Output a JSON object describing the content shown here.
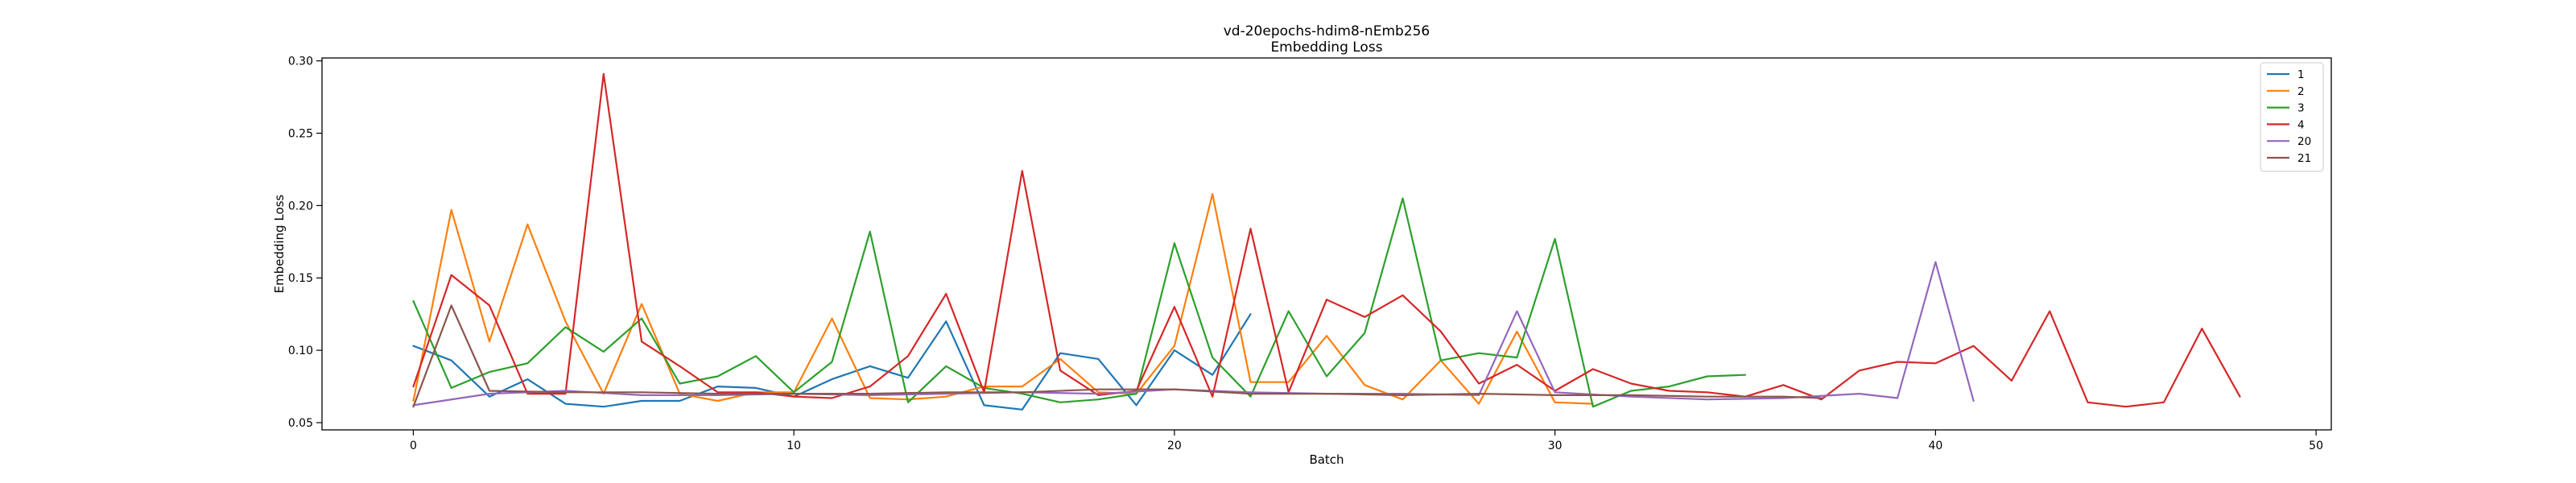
{
  "chart_data": {
    "type": "line",
    "title": "vd-20epochs-hdim8-nEmb256",
    "subtitle": "Embedding Loss",
    "xlabel": "Batch",
    "ylabel": "Embedding Loss",
    "xlim": [
      -2.4,
      50.4
    ],
    "ylim": [
      0.045,
      0.302
    ],
    "xticks": [
      0,
      10,
      20,
      30,
      40,
      50
    ],
    "yticks": [
      0.05,
      0.1,
      0.15,
      0.2,
      0.25,
      0.3
    ],
    "xtick_labels": [
      "0",
      "10",
      "20",
      "30",
      "40",
      "50"
    ],
    "ytick_labels": [
      "0.05",
      "0.10",
      "0.15",
      "0.20",
      "0.25",
      "0.30"
    ],
    "grid": false,
    "legend_position": "top-right",
    "series": [
      {
        "name": "1",
        "color": "#1f77b4",
        "x": [
          0,
          1,
          2,
          3,
          4,
          5,
          6,
          7,
          8,
          9,
          10,
          11,
          12,
          13,
          14,
          15,
          16,
          17,
          18,
          19,
          20,
          21,
          22
        ],
        "y": [
          0.103,
          0.093,
          0.068,
          0.08,
          0.063,
          0.061,
          0.065,
          0.065,
          0.075,
          0.074,
          0.068,
          0.08,
          0.089,
          0.081,
          0.12,
          0.062,
          0.059,
          0.098,
          0.094,
          0.062,
          0.1,
          0.083,
          0.125
        ]
      },
      {
        "name": "2",
        "color": "#ff7f0e",
        "x": [
          0,
          1,
          2,
          3,
          4,
          5,
          6,
          7,
          8,
          9,
          10,
          11,
          12,
          13,
          14,
          15,
          16,
          17,
          18,
          19,
          20,
          21,
          22,
          23,
          24,
          25,
          26,
          27,
          28,
          29,
          30,
          31
        ],
        "y": [
          0.065,
          0.197,
          0.106,
          0.187,
          0.12,
          0.07,
          0.132,
          0.07,
          0.065,
          0.071,
          0.071,
          0.122,
          0.067,
          0.066,
          0.068,
          0.075,
          0.075,
          0.094,
          0.071,
          0.07,
          0.103,
          0.208,
          0.078,
          0.078,
          0.11,
          0.076,
          0.066,
          0.093,
          0.063,
          0.113,
          0.064,
          0.063
        ]
      },
      {
        "name": "3",
        "color": "#2ca02c",
        "x": [
          0,
          1,
          2,
          3,
          4,
          5,
          6,
          7,
          8,
          9,
          10,
          11,
          12,
          13,
          14,
          15,
          16,
          17,
          18,
          19,
          20,
          21,
          22,
          23,
          24,
          25,
          26,
          27,
          28,
          29,
          30,
          31,
          32,
          33,
          34,
          35
        ],
        "y": [
          0.134,
          0.074,
          0.085,
          0.091,
          0.116,
          0.099,
          0.122,
          0.077,
          0.082,
          0.096,
          0.071,
          0.092,
          0.182,
          0.064,
          0.089,
          0.074,
          0.07,
          0.064,
          0.066,
          0.07,
          0.174,
          0.095,
          0.068,
          0.127,
          0.082,
          0.112,
          0.205,
          0.093,
          0.098,
          0.095,
          0.177,
          0.061,
          0.072,
          0.075,
          0.082,
          0.083
        ]
      },
      {
        "name": "4",
        "color": "#d62728",
        "x": [
          0,
          1,
          2,
          3,
          4,
          5,
          6,
          7,
          8,
          9,
          10,
          11,
          12,
          13,
          14,
          15,
          16,
          17,
          18,
          19,
          20,
          21,
          22,
          23,
          24,
          25,
          26,
          27,
          28,
          29,
          30,
          31,
          32,
          33,
          34,
          35,
          36,
          37,
          38,
          39,
          40,
          41,
          42,
          43,
          44,
          45,
          46,
          47,
          48
        ],
        "y": [
          0.075,
          0.152,
          0.131,
          0.07,
          0.07,
          0.291,
          0.106,
          0.089,
          0.071,
          0.071,
          0.068,
          0.067,
          0.075,
          0.096,
          0.139,
          0.071,
          0.224,
          0.086,
          0.069,
          0.072,
          0.13,
          0.068,
          0.184,
          0.071,
          0.135,
          0.123,
          0.138,
          0.113,
          0.077,
          0.09,
          0.072,
          0.087,
          0.077,
          0.072,
          0.071,
          0.068,
          0.076,
          0.066,
          0.086,
          0.092,
          0.091,
          0.103,
          0.079,
          0.127,
          0.064,
          0.061,
          0.064,
          0.115,
          0.068
        ]
      },
      {
        "name": "20",
        "color": "#9467bd",
        "x": [
          0,
          2,
          4,
          6,
          8,
          10,
          12,
          14,
          16,
          18,
          20,
          22,
          24,
          26,
          28,
          29,
          30,
          32,
          34,
          36,
          38,
          39,
          40,
          41
        ],
        "y": [
          0.062,
          0.07,
          0.072,
          0.069,
          0.069,
          0.07,
          0.069,
          0.07,
          0.071,
          0.07,
          0.073,
          0.071,
          0.07,
          0.07,
          0.069,
          0.127,
          0.071,
          0.068,
          0.066,
          0.067,
          0.07,
          0.067,
          0.161,
          0.065
        ]
      },
      {
        "name": "21",
        "color": "#8c564b",
        "x": [
          0,
          1,
          2,
          4,
          6,
          8,
          10,
          12,
          14,
          16,
          18,
          20,
          22,
          24,
          26,
          28,
          30,
          32,
          34,
          36,
          37
        ],
        "y": [
          0.061,
          0.131,
          0.072,
          0.071,
          0.071,
          0.07,
          0.07,
          0.07,
          0.071,
          0.071,
          0.073,
          0.073,
          0.07,
          0.07,
          0.069,
          0.07,
          0.069,
          0.069,
          0.068,
          0.068,
          0.067
        ]
      }
    ]
  }
}
